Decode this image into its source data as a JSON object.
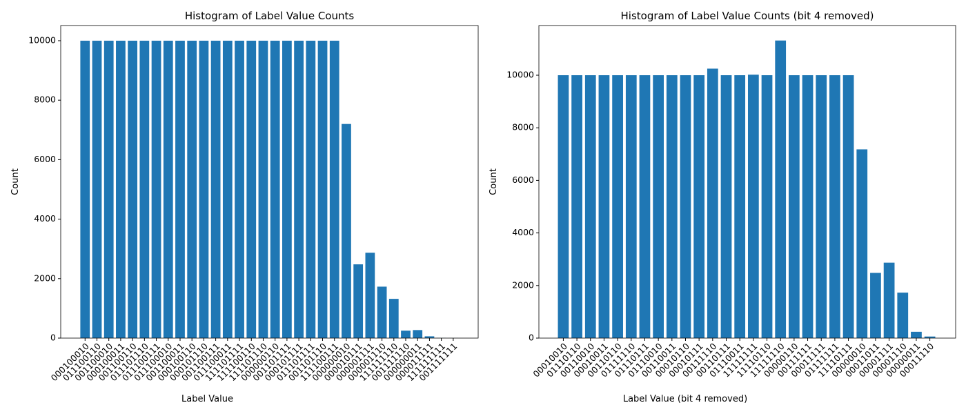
{
  "chart_data": [
    {
      "type": "bar",
      "title": "Histogram of Label Value Counts",
      "xlabel": "Label Value",
      "ylabel": "Count",
      "color": "#1f77b4",
      "categories": [
        "000100010",
        "011100110",
        "001100010",
        "000100011",
        "001100110",
        "011101110",
        "011100111",
        "011100010",
        "001100011",
        "000100110",
        "000101110",
        "001100111",
        "011100011",
        "111101111",
        "111100110",
        "111101110",
        "000000110",
        "001101111",
        "000101111",
        "011101111",
        "001101110",
        "111100111",
        "000000010",
        "000010111",
        "000001111",
        "000001110",
        "111111110",
        "001111110",
        "000000011",
        "000011111",
        "111111111",
        "001111111"
      ],
      "values": [
        10000,
        10000,
        10000,
        10000,
        10000,
        10000,
        10000,
        10000,
        10000,
        10000,
        10000,
        10000,
        10000,
        10000,
        10000,
        10000,
        10000,
        10000,
        10000,
        10000,
        10000,
        10000,
        7200,
        2480,
        2870,
        1730,
        1320,
        250,
        270,
        60,
        5,
        3
      ],
      "ylim": [
        0,
        10510
      ],
      "yticks": [
        0,
        2000,
        4000,
        6000,
        8000,
        10000
      ]
    },
    {
      "type": "bar",
      "title": "Histogram of Label Value Counts (bit 4 removed)",
      "xlabel": "Label Value (bit 4 removed)",
      "ylabel": "Count",
      "color": "#1f77b4",
      "categories": [
        "00010010",
        "01110110",
        "00110010",
        "00010011",
        "00110110",
        "01111110",
        "01110111",
        "01110010",
        "00110011",
        "00010110",
        "00010111",
        "00111110",
        "00110111",
        "01110011",
        "11111111",
        "11110110",
        "11111110",
        "00000110",
        "00111111",
        "00011111",
        "01111111",
        "11110111",
        "00000010",
        "00011011",
        "00001111",
        "00001110",
        "00000011",
        "00011110"
      ],
      "values": [
        10000,
        10000,
        10000,
        10000,
        10000,
        10000,
        10000,
        10000,
        10000,
        10000,
        10000,
        10250,
        10000,
        10000,
        10020,
        10000,
        11320,
        10000,
        10000,
        10000,
        10000,
        10000,
        7180,
        2480,
        2870,
        1730,
        240,
        60
      ],
      "ylim": [
        0,
        11890
      ],
      "yticks": [
        0,
        2000,
        4000,
        6000,
        8000,
        10000
      ]
    }
  ]
}
